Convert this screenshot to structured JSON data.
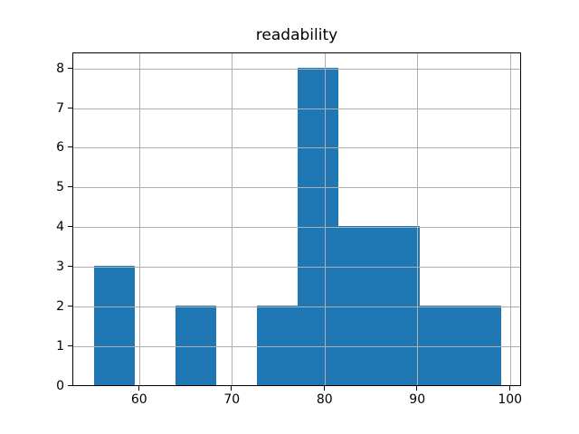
{
  "chart_data": {
    "type": "bar",
    "subtype": "histogram",
    "title": "readability",
    "xlabel": "",
    "ylabel": "",
    "bin_edges": [
      55,
      59.4,
      63.8,
      68.2,
      72.6,
      77.0,
      81.4,
      85.8,
      90.2,
      94.6,
      99
    ],
    "counts": [
      3,
      0,
      2,
      0,
      2,
      8,
      4,
      4,
      2,
      2
    ],
    "xticks": [
      60,
      70,
      80,
      90,
      100
    ],
    "yticks": [
      0,
      1,
      2,
      3,
      4,
      5,
      6,
      7,
      8
    ],
    "xlim": [
      52.8,
      101.2
    ],
    "ylim": [
      0,
      8.4
    ],
    "grid": true,
    "legend": false,
    "colors": {
      "bar": "#1f77b4",
      "grid": "#b0b0b0",
      "axis": "#000000",
      "text": "#000000",
      "background": "#ffffff"
    }
  }
}
